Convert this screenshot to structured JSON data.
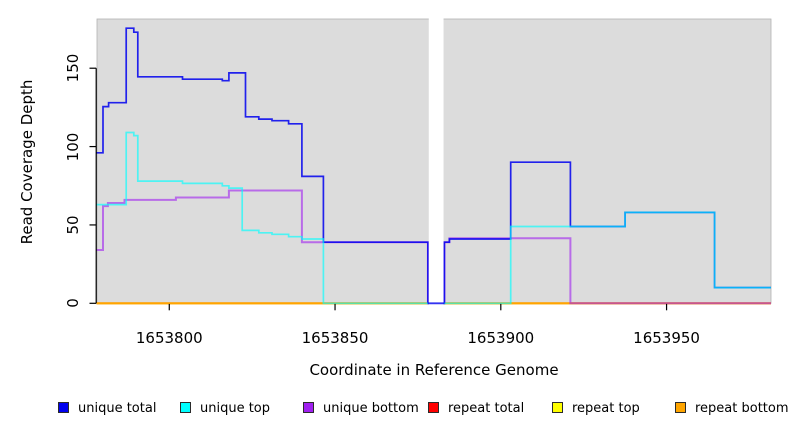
{
  "chart_data": {
    "type": "line",
    "subtype": "step-after",
    "title": "",
    "xlabel": "Coordinate in Reference Genome",
    "ylabel": "Read Coverage Depth",
    "x_ticks": [
      1653800,
      1653850,
      1653900,
      1653950
    ],
    "y_ticks": [
      0,
      50,
      100,
      150
    ],
    "xlim": [
      1653778.2,
      1653981.5
    ],
    "ylim": [
      0,
      181.4
    ],
    "grid": false,
    "legend_position": "bottom",
    "panel_background": "#dcdcdc",
    "axis_color": "#000000",
    "coverage_gap": {
      "x_start": 1653878,
      "x_end": 1653883
    },
    "baseline_visible_colors": {
      "left_of_1653847": "orange",
      "1653847_to_1653903": "green (unique top at 0 over repeat lines)",
      "1653903_to_1653921": "orange",
      "right_of_1653921": "pink (unique bottom at 0 over repeat lines)"
    },
    "series": [
      {
        "name": "unique total",
        "color": "#0000ee",
        "points": [
          [
            1653778,
            96
          ],
          [
            1653780,
            125.5
          ],
          [
            1653781.7,
            128
          ],
          [
            1653787,
            175.5
          ],
          [
            1653789.3,
            173
          ],
          [
            1653790.5,
            144.5
          ],
          [
            1653804,
            143
          ],
          [
            1653816,
            142
          ],
          [
            1653818,
            147
          ],
          [
            1653823,
            119
          ],
          [
            1653827,
            117.5
          ],
          [
            1653831,
            116.5
          ],
          [
            1653836,
            114.5
          ],
          [
            1653840,
            81
          ],
          [
            1653846.5,
            39
          ],
          [
            1653878,
            0
          ],
          [
            1653883,
            39
          ],
          [
            1653884.5,
            41
          ],
          [
            1653903,
            90
          ],
          [
            1653921,
            49
          ],
          [
            1653937.5,
            58
          ],
          [
            1653964.5,
            10
          ],
          [
            1653981.5,
            10
          ]
        ]
      },
      {
        "name": "unique top",
        "color": "#00ffff",
        "points": [
          [
            1653778,
            63
          ],
          [
            1653787,
            109
          ],
          [
            1653789.3,
            107
          ],
          [
            1653790.5,
            78
          ],
          [
            1653804,
            76.5
          ],
          [
            1653816,
            75
          ],
          [
            1653818,
            73.5
          ],
          [
            1653822,
            46.5
          ],
          [
            1653827,
            45
          ],
          [
            1653831,
            44
          ],
          [
            1653836,
            42.5
          ],
          [
            1653840,
            41
          ],
          [
            1653846.5,
            0
          ],
          [
            1653903,
            49
          ],
          [
            1653937.5,
            58
          ],
          [
            1653964.5,
            10
          ],
          [
            1653981.5,
            10
          ]
        ]
      },
      {
        "name": "unique bottom",
        "color": "#a020f0",
        "points": [
          [
            1653778,
            34
          ],
          [
            1653780,
            62
          ],
          [
            1653781.5,
            64
          ],
          [
            1653786.5,
            66
          ],
          [
            1653802,
            67.5
          ],
          [
            1653818,
            72
          ],
          [
            1653840,
            39
          ],
          [
            1653878,
            0
          ],
          [
            1653883,
            39
          ],
          [
            1653884.5,
            41.5
          ],
          [
            1653921,
            0
          ],
          [
            1653981.5,
            0
          ]
        ]
      },
      {
        "name": "repeat total",
        "color": "#ff0000",
        "points": [
          [
            1653778,
            0
          ],
          [
            1653981.5,
            0
          ]
        ]
      },
      {
        "name": "repeat top",
        "color": "#ffff00",
        "points": [
          [
            1653778,
            0
          ],
          [
            1653981.5,
            0
          ]
        ]
      },
      {
        "name": "repeat bottom",
        "color": "#ffa500",
        "points": [
          [
            1653778,
            0
          ],
          [
            1653981.5,
            0
          ]
        ]
      }
    ]
  }
}
